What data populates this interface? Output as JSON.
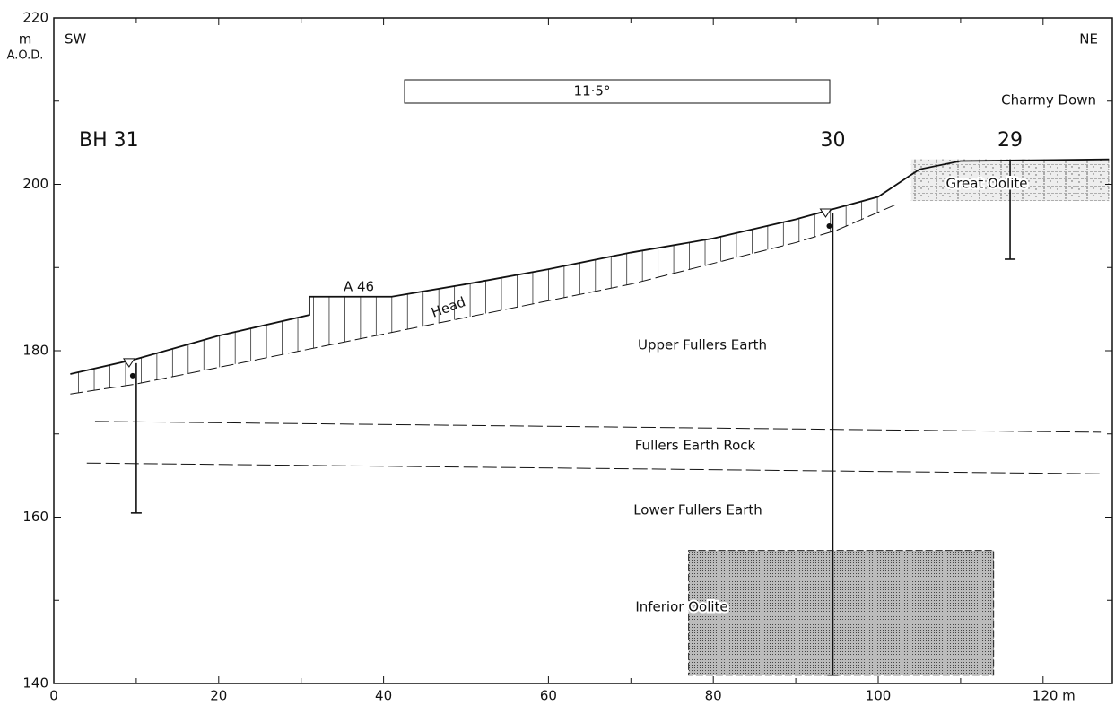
{
  "chart_data": {
    "type": "section",
    "y_unit": "m",
    "y_datum": "A.O.D.",
    "left_direction": "SW",
    "right_direction": "NE",
    "place": "Charmy Down",
    "dip_label": "11·5°",
    "road": "A 46",
    "xlim": [
      0,
      128.4
    ],
    "ylim": [
      140,
      220
    ],
    "xticks": [
      0,
      20,
      40,
      60,
      80,
      100,
      {
        "value": 120,
        "label": "120 m"
      }
    ],
    "yticks": [
      140,
      160,
      180,
      200,
      220
    ],
    "ground": {
      "x": [
        2,
        10,
        20,
        31,
        31,
        41,
        50,
        60,
        70,
        80,
        90,
        100,
        105,
        110,
        128
      ],
      "y": [
        177.2,
        179,
        181.8,
        184.3,
        186.5,
        186.5,
        188,
        189.8,
        191.8,
        193.5,
        195.8,
        198.5,
        201.8,
        202.8,
        203
      ]
    },
    "head_base": {
      "x": [
        2,
        10,
        30,
        50,
        70,
        90,
        95,
        102
      ],
      "y": [
        174.8,
        176,
        180,
        184,
        188,
        193,
        194.5,
        197.5
      ]
    },
    "rock_top": {
      "x": [
        5,
        127
      ],
      "y": [
        171.5,
        170.2
      ]
    },
    "rock_base": {
      "x": [
        4,
        127
      ],
      "y": [
        166.5,
        165.2
      ]
    },
    "boreholes": [
      {
        "name": "BH 31",
        "x": 10,
        "top": 178.5,
        "bottom": 160.5
      },
      {
        "name": "30",
        "x": 94.5,
        "top": 196.5,
        "bottom": 141
      },
      {
        "name": "29",
        "x": 116,
        "top": 203,
        "bottom": 191
      }
    ],
    "units": {
      "head": "Head",
      "upper": "Upper Fullers Earth",
      "rock": "Fullers Earth Rock",
      "lower": "Lower Fullers Earth",
      "inferior": "Inferior Oolite",
      "great": "Great Oolite"
    },
    "inferior_oolite": {
      "x": [
        77,
        114
      ],
      "y": [
        141,
        156
      ]
    },
    "great_oolite": {
      "x": [
        104,
        128
      ],
      "y": [
        198,
        203
      ]
    }
  }
}
